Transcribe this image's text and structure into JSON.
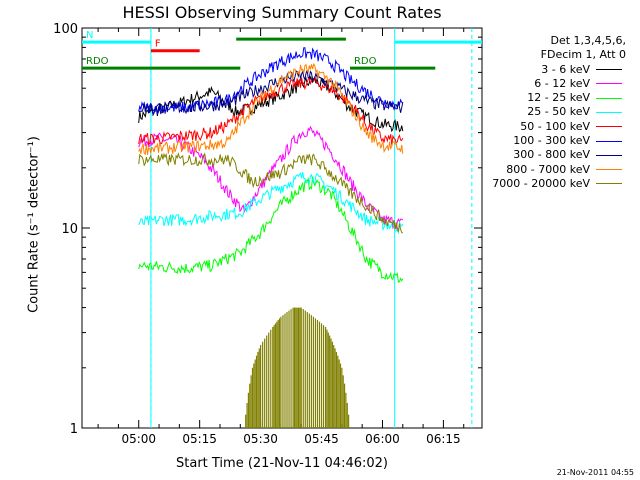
{
  "chart_data": {
    "type": "line",
    "title": "HESSI Observing Summary Count Rates",
    "xlabel": "Start Time (21-Nov-11 04:46:02)",
    "ylabel": "Count Rate (s⁻¹ detector⁻¹)",
    "yscale": "log",
    "ylim": [
      1,
      100
    ],
    "xlim": [
      "04:46:02",
      "06:24:30"
    ],
    "x_ticks": [
      "05:00",
      "05:15",
      "05:30",
      "05:45",
      "06:00",
      "06:15"
    ],
    "y_ticks": [
      "1",
      "10",
      "100"
    ],
    "grid": false,
    "legend_header": [
      "Det 1,3,4,5,6,",
      "FDecim 1, Att 0"
    ],
    "series": [
      {
        "name": "3 - 6 keV",
        "color": "#000000",
        "points": [
          [
            "05:00",
            36
          ],
          [
            "05:10",
            42
          ],
          [
            "05:18",
            48
          ],
          [
            "05:24",
            38
          ],
          [
            "05:28",
            40
          ],
          [
            "05:35",
            46
          ],
          [
            "05:40",
            52
          ],
          [
            "05:43",
            55
          ],
          [
            "05:47",
            50
          ],
          [
            "05:52",
            40
          ],
          [
            "05:56",
            36
          ],
          [
            "06:00",
            33
          ],
          [
            "06:05",
            32
          ]
        ]
      },
      {
        "name": "6 - 12 keV",
        "color": "#ff00ff",
        "points": [
          [
            "05:00",
            27
          ],
          [
            "05:05",
            28
          ],
          [
            "05:10",
            27
          ],
          [
            "05:16",
            22
          ],
          [
            "05:22",
            15
          ],
          [
            "05:26",
            12
          ],
          [
            "05:30",
            16
          ],
          [
            "05:35",
            22
          ],
          [
            "05:40",
            30
          ],
          [
            "05:42",
            31
          ],
          [
            "05:46",
            26
          ],
          [
            "05:52",
            17
          ],
          [
            "05:56",
            13
          ],
          [
            "06:00",
            11
          ],
          [
            "06:05",
            10.5
          ]
        ]
      },
      {
        "name": "12 - 25 keV",
        "color": "#00ff00",
        "points": [
          [
            "05:00",
            6.5
          ],
          [
            "05:05",
            6.4
          ],
          [
            "05:12",
            6.3
          ],
          [
            "05:18",
            6.5
          ],
          [
            "05:25",
            7.5
          ],
          [
            "05:30",
            9.5
          ],
          [
            "05:35",
            13
          ],
          [
            "05:40",
            16
          ],
          [
            "05:43",
            17
          ],
          [
            "05:47",
            15
          ],
          [
            "05:52",
            10
          ],
          [
            "05:56",
            7
          ],
          [
            "06:00",
            6
          ],
          [
            "06:05",
            5.5
          ]
        ]
      },
      {
        "name": "25 - 50 keV",
        "color": "#00ffff",
        "points": [
          [
            "05:00",
            10.5
          ],
          [
            "05:05",
            11
          ],
          [
            "05:12",
            11
          ],
          [
            "05:18",
            11.5
          ],
          [
            "05:25",
            12
          ],
          [
            "05:30",
            14
          ],
          [
            "05:35",
            16
          ],
          [
            "05:40",
            18
          ],
          [
            "05:43",
            18
          ],
          [
            "05:47",
            16
          ],
          [
            "05:52",
            13
          ],
          [
            "05:56",
            11
          ],
          [
            "06:00",
            10.5
          ],
          [
            "06:05",
            10
          ]
        ]
      },
      {
        "name": "50 - 100 keV",
        "color": "#ff0000",
        "points": [
          [
            "05:00",
            28
          ],
          [
            "05:05",
            28
          ],
          [
            "05:12",
            29
          ],
          [
            "05:18",
            30
          ],
          [
            "05:22",
            33
          ],
          [
            "05:28",
            42
          ],
          [
            "05:35",
            50
          ],
          [
            "05:40",
            53
          ],
          [
            "05:43",
            54
          ],
          [
            "05:47",
            50
          ],
          [
            "05:52",
            42
          ],
          [
            "05:56",
            33
          ],
          [
            "06:00",
            28
          ],
          [
            "06:05",
            27
          ]
        ]
      },
      {
        "name": "100 - 300 keV",
        "color": "#0000ff",
        "points": [
          [
            "05:00",
            40
          ],
          [
            "05:05",
            40
          ],
          [
            "05:12",
            40
          ],
          [
            "05:18",
            42
          ],
          [
            "05:22",
            44
          ],
          [
            "05:28",
            55
          ],
          [
            "05:35",
            68
          ],
          [
            "05:40",
            75
          ],
          [
            "05:43",
            74
          ],
          [
            "05:47",
            68
          ],
          [
            "05:52",
            55
          ],
          [
            "05:56",
            48
          ],
          [
            "06:00",
            43
          ],
          [
            "06:05",
            41
          ]
        ]
      },
      {
        "name": "300 - 800 keV",
        "color": "#000080",
        "points": [
          [
            "05:00",
            40
          ],
          [
            "05:05",
            40
          ],
          [
            "05:12",
            40
          ],
          [
            "05:18",
            41
          ],
          [
            "05:22",
            42
          ],
          [
            "05:28",
            48
          ],
          [
            "05:35",
            55
          ],
          [
            "05:40",
            58
          ],
          [
            "05:43",
            57
          ],
          [
            "05:47",
            53
          ],
          [
            "05:52",
            47
          ],
          [
            "05:56",
            43
          ],
          [
            "06:00",
            41
          ],
          [
            "06:05",
            40
          ]
        ]
      },
      {
        "name": "800 - 7000 keV",
        "color": "#ff8000",
        "points": [
          [
            "05:00",
            25
          ],
          [
            "05:05",
            25
          ],
          [
            "05:12",
            25.5
          ],
          [
            "05:18",
            26
          ],
          [
            "05:22",
            27
          ],
          [
            "05:28",
            40
          ],
          [
            "05:35",
            55
          ],
          [
            "05:40",
            62
          ],
          [
            "05:43",
            62
          ],
          [
            "05:47",
            55
          ],
          [
            "05:52",
            40
          ],
          [
            "05:56",
            30
          ],
          [
            "06:00",
            26
          ],
          [
            "06:05",
            25
          ]
        ]
      },
      {
        "name": "7000 - 20000 keV",
        "color": "#808000",
        "points": [
          [
            "05:00",
            22
          ],
          [
            "05:05",
            22
          ],
          [
            "05:12",
            22
          ],
          [
            "05:18",
            22
          ],
          [
            "05:22",
            22
          ],
          [
            "05:28",
            17
          ],
          [
            "05:35",
            19
          ],
          [
            "05:40",
            22
          ],
          [
            "05:43",
            22
          ],
          [
            "05:47",
            19
          ],
          [
            "05:52",
            15
          ],
          [
            "05:56",
            13
          ],
          [
            "06:00",
            11
          ],
          [
            "06:05",
            10
          ]
        ]
      }
    ],
    "olive_burst_upper": [
      [
        "05:26",
        1.0
      ],
      [
        "05:28",
        2.0
      ],
      [
        "05:30",
        2.6
      ],
      [
        "05:33",
        3.2
      ],
      [
        "05:35",
        3.6
      ],
      [
        "05:38",
        4.0
      ],
      [
        "05:40",
        4.0
      ],
      [
        "05:43",
        3.6
      ],
      [
        "05:46",
        3.2
      ],
      [
        "05:48",
        2.6
      ],
      [
        "05:50",
        2.0
      ],
      [
        "05:52",
        1.0
      ]
    ],
    "attenuator_flags": [
      {
        "label": "RDO",
        "color": "#008000",
        "start": "04:46:02",
        "end": "05:25",
        "y": 63
      },
      {
        "label": "RDO",
        "color": "#008000",
        "start": "05:52",
        "end": "06:13",
        "y": 63
      },
      {
        "label": "N",
        "color": "#00ffff",
        "start": "04:46:02",
        "end": "05:03",
        "y": 85
      },
      {
        "label": "",
        "color": "#00ffff",
        "start": "06:03",
        "end": "06:24:30",
        "y": 85
      },
      {
        "label": "F",
        "color": "#ff0000",
        "start": "05:03",
        "end": "05:15",
        "y": 77
      },
      {
        "label": "",
        "color": "#008000",
        "start": "05:24",
        "end": "05:51",
        "y": 88
      }
    ],
    "eclipse_markers": [
      "05:03",
      "06:03"
    ],
    "saa_markers": [
      "05:03",
      "06:22"
    ]
  },
  "timestamp": "21-Nov-2011 04:55"
}
